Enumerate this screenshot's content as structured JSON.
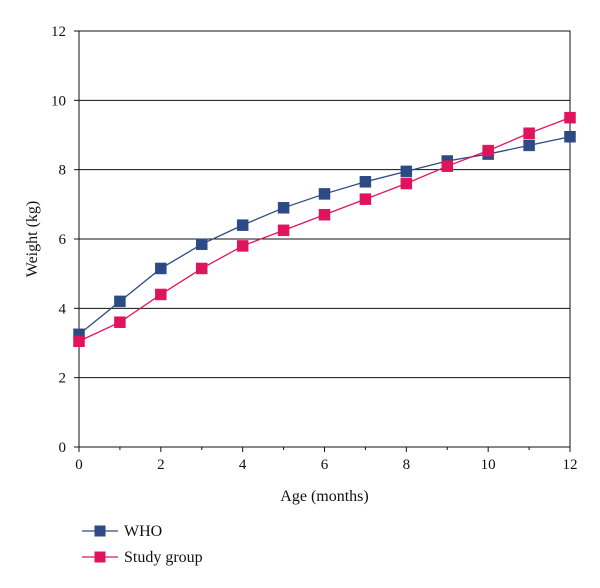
{
  "chart_data": {
    "type": "line",
    "title": "",
    "xlabel": "Age (months)",
    "ylabel": "Weight (kg)",
    "xlim": [
      0,
      12
    ],
    "ylim": [
      0,
      12
    ],
    "x_ticks": [
      0,
      2,
      4,
      6,
      8,
      10,
      12
    ],
    "y_ticks": [
      0,
      2,
      4,
      6,
      8,
      10,
      12
    ],
    "grid": "horizontal",
    "legend_position": "bottom-left",
    "x": [
      0,
      1,
      2,
      3,
      4,
      5,
      6,
      7,
      8,
      9,
      10,
      11,
      12
    ],
    "series": [
      {
        "name": "WHO",
        "color": "#2b4a86",
        "marker": "square",
        "values": [
          3.25,
          4.2,
          5.15,
          5.85,
          6.4,
          6.9,
          7.3,
          7.65,
          7.95,
          8.25,
          8.45,
          8.7,
          8.95
        ]
      },
      {
        "name": "Study group",
        "color": "#e0145c",
        "marker": "square",
        "values": [
          3.05,
          3.6,
          4.4,
          5.15,
          5.8,
          6.25,
          6.7,
          7.15,
          7.6,
          8.1,
          8.55,
          9.05,
          9.5
        ]
      }
    ]
  }
}
